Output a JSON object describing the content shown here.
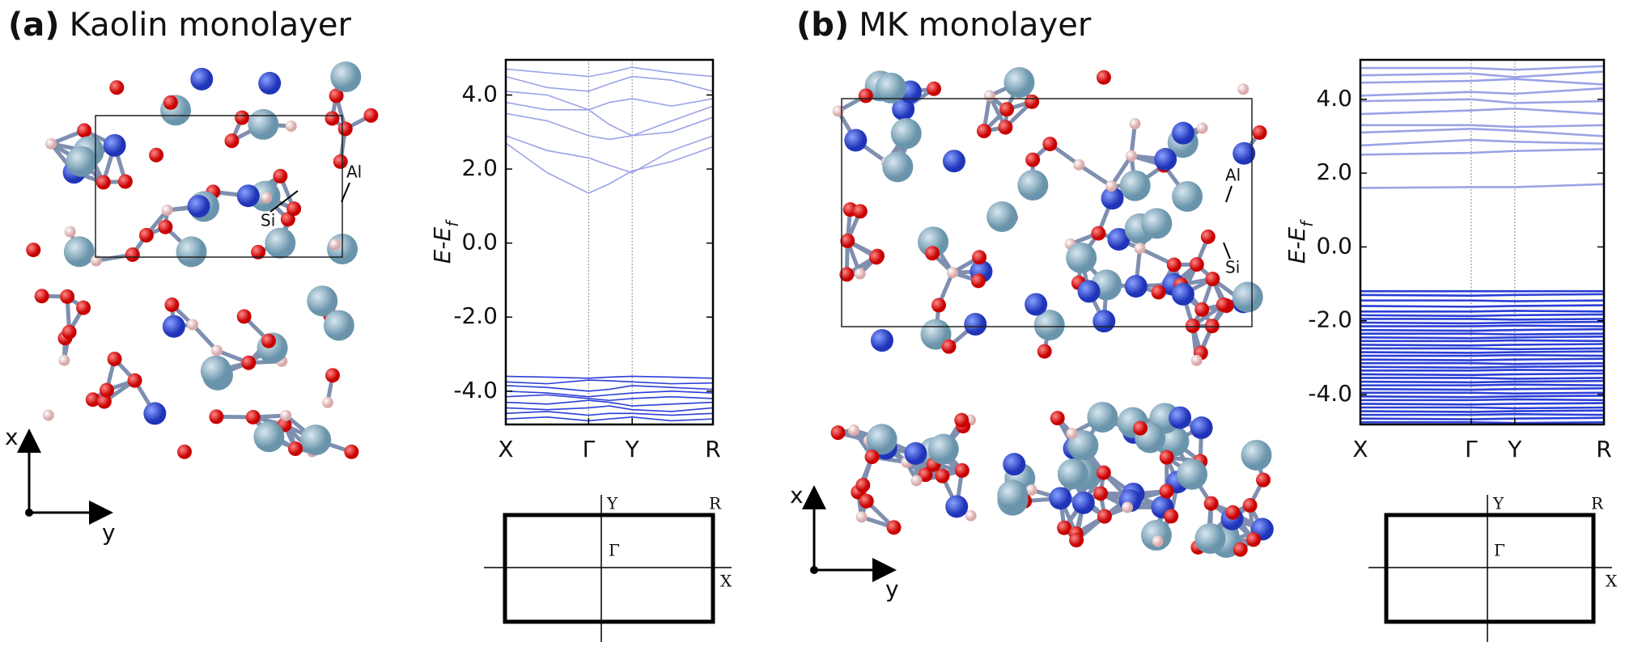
{
  "panels": [
    {
      "label": "(a)",
      "title": "Kaolin monolayer",
      "atom_labels": [
        "Al",
        "Si"
      ],
      "axis_labels": [
        "x",
        "y"
      ],
      "bz_labels": [
        "Y",
        "R",
        "Γ",
        "X"
      ]
    },
    {
      "label": "(b)",
      "title": "MK monolayer",
      "atom_labels": [
        "Al",
        "Si"
      ],
      "axis_labels": [
        "x",
        "y"
      ],
      "bz_labels": [
        "Y",
        "R",
        "Γ",
        "X"
      ]
    }
  ],
  "chart_data": [
    {
      "type": "line",
      "ylabel": {
        "main": "E-E",
        "sub": "f"
      },
      "grid": "x",
      "x": [
        0,
        0.2,
        0.4,
        0.5,
        0.61,
        0.8,
        1.0
      ],
      "xlim": [
        0,
        1
      ],
      "xticks": [
        {
          "value": 0,
          "label": "X"
        },
        {
          "value": 0.4,
          "label": "Γ"
        },
        {
          "value": 0.61,
          "label": "Y"
        },
        {
          "value": 1,
          "label": "R"
        }
      ],
      "ylim": [
        -4.9,
        4.95
      ],
      "yticks": [
        {
          "value": 4,
          "label": "4.0"
        },
        {
          "value": 2,
          "label": "2.0"
        },
        {
          "value": 0,
          "label": "0.0"
        },
        {
          "value": -2,
          "label": "-2.0"
        },
        {
          "value": -4,
          "label": "-4.0"
        }
      ],
      "series": [
        {
          "color": "#9aa3e6",
          "values": [
            2.7,
            1.9,
            1.35,
            1.6,
            1.95,
            2.2,
            2.6
          ]
        },
        {
          "color": "#9aa3e6",
          "values": [
            2.9,
            2.5,
            2.3,
            2.1,
            1.9,
            2.5,
            2.9
          ]
        },
        {
          "color": "#9aa3e6",
          "values": [
            3.5,
            3.3,
            2.9,
            2.8,
            2.9,
            3.0,
            3.4
          ]
        },
        {
          "color": "#9aa3e6",
          "values": [
            3.8,
            3.6,
            3.6,
            3.2,
            2.9,
            3.3,
            3.7
          ]
        },
        {
          "color": "#9aa3e6",
          "values": [
            4.1,
            4.0,
            3.6,
            3.8,
            3.9,
            3.7,
            3.9
          ]
        },
        {
          "color": "#9aa3e6",
          "values": [
            4.5,
            4.2,
            4.1,
            4.3,
            4.5,
            4.4,
            4.1
          ]
        },
        {
          "color": "#9aa3e6",
          "values": [
            4.7,
            4.6,
            4.5,
            4.6,
            4.75,
            4.6,
            4.5
          ]
        },
        {
          "color": "#2b3fd6",
          "values": [
            -3.6,
            -3.62,
            -3.65,
            -3.62,
            -3.6,
            -3.62,
            -3.65
          ]
        },
        {
          "color": "#2b3fd6",
          "values": [
            -3.75,
            -3.8,
            -3.7,
            -3.72,
            -3.75,
            -3.8,
            -3.78
          ]
        },
        {
          "color": "#2b3fd6",
          "values": [
            -3.85,
            -3.9,
            -4.0,
            -3.95,
            -3.85,
            -3.9,
            -3.95
          ]
        },
        {
          "color": "#2b3fd6",
          "values": [
            -4.0,
            -4.05,
            -4.15,
            -4.1,
            -4.05,
            -4.0,
            -4.05
          ]
        },
        {
          "color": "#2b3fd6",
          "values": [
            -4.15,
            -4.1,
            -4.2,
            -4.25,
            -4.2,
            -4.15,
            -4.2
          ]
        },
        {
          "color": "#2b3fd6",
          "values": [
            -4.3,
            -4.35,
            -4.25,
            -4.3,
            -4.4,
            -4.35,
            -4.3
          ]
        },
        {
          "color": "#2b3fd6",
          "values": [
            -4.45,
            -4.5,
            -4.45,
            -4.4,
            -4.5,
            -4.55,
            -4.45
          ]
        },
        {
          "color": "#2b3fd6",
          "values": [
            -4.6,
            -4.55,
            -4.65,
            -4.6,
            -4.6,
            -4.65,
            -4.6
          ]
        },
        {
          "color": "#2b3fd6",
          "values": [
            -4.75,
            -4.7,
            -4.8,
            -4.75,
            -4.7,
            -4.8,
            -4.75
          ]
        }
      ]
    },
    {
      "type": "line",
      "ylabel": {
        "main": "E-E",
        "sub": "f"
      },
      "grid": "x",
      "x": [
        0,
        0.455,
        0.634,
        1
      ],
      "xlim": [
        0,
        1
      ],
      "xticks": [
        {
          "value": 0,
          "label": "X"
        },
        {
          "value": 0.455,
          "label": "Γ"
        },
        {
          "value": 0.634,
          "label": "Y"
        },
        {
          "value": 1,
          "label": "R"
        }
      ],
      "ylim": [
        -4.81,
        5.07
      ],
      "yticks": [
        {
          "value": 4,
          "label": "4.0"
        },
        {
          "value": 2,
          "label": "2.0"
        },
        {
          "value": 0,
          "label": "0.0"
        },
        {
          "value": -2,
          "label": "-2.0"
        },
        {
          "value": -4,
          "label": "-4.0"
        }
      ],
      "series": [
        {
          "color": "#9aa3e6",
          "values": [
            1.6,
            1.62,
            1.62,
            1.7
          ]
        },
        {
          "color": "#9aa3e6",
          "values": [
            2.5,
            2.55,
            2.6,
            2.65
          ]
        },
        {
          "color": "#9aa3e6",
          "values": [
            2.75,
            2.9,
            2.85,
            2.8
          ]
        },
        {
          "color": "#9aa3e6",
          "values": [
            3.1,
            3.2,
            3.15,
            3.0
          ]
        },
        {
          "color": "#9aa3e6",
          "values": [
            3.3,
            3.3,
            3.25,
            3.3
          ]
        },
        {
          "color": "#9aa3e6",
          "values": [
            3.6,
            3.7,
            3.75,
            3.6
          ]
        },
        {
          "color": "#9aa3e6",
          "values": [
            3.95,
            4.0,
            3.9,
            3.95
          ]
        },
        {
          "color": "#9aa3e6",
          "values": [
            4.1,
            4.2,
            4.15,
            4.3
          ]
        },
        {
          "color": "#9aa3e6",
          "values": [
            4.45,
            4.5,
            4.55,
            4.4
          ]
        },
        {
          "color": "#9aa3e6",
          "values": [
            4.65,
            4.7,
            4.6,
            4.75
          ]
        },
        {
          "color": "#9aa3e6",
          "values": [
            4.85,
            4.85,
            4.8,
            4.9
          ]
        },
        {
          "color": "#2b3fd6",
          "values": [
            -1.2,
            -1.2,
            -1.2,
            -1.2
          ]
        },
        {
          "color": "#2b3fd6",
          "values": [
            -1.3,
            -1.32,
            -1.3,
            -1.28
          ]
        },
        {
          "color": "#2b3fd6",
          "values": [
            -1.45,
            -1.45,
            -1.47,
            -1.45
          ]
        },
        {
          "color": "#2b3fd6",
          "values": [
            -1.6,
            -1.62,
            -1.6,
            -1.58
          ]
        },
        {
          "color": "#2b3fd6",
          "values": [
            -1.75,
            -1.75,
            -1.73,
            -1.75
          ]
        },
        {
          "color": "#2b3fd6",
          "values": [
            -1.85,
            -1.87,
            -1.85,
            -1.83
          ]
        },
        {
          "color": "#2b3fd6",
          "values": [
            -1.95,
            -1.95,
            -1.97,
            -1.95
          ]
        },
        {
          "color": "#2b3fd6",
          "values": [
            -2.05,
            -2.07,
            -2.05,
            -2.03
          ]
        },
        {
          "color": "#2b3fd6",
          "values": [
            -2.15,
            -2.15,
            -2.13,
            -2.15
          ]
        },
        {
          "color": "#2b3fd6",
          "values": [
            -2.25,
            -2.27,
            -2.25,
            -2.23
          ]
        },
        {
          "color": "#2b3fd6",
          "values": [
            -2.35,
            -2.35,
            -2.37,
            -2.35
          ]
        },
        {
          "color": "#2b3fd6",
          "values": [
            -2.45,
            -2.47,
            -2.45,
            -2.43
          ]
        },
        {
          "color": "#2b3fd6",
          "values": [
            -2.55,
            -2.55,
            -2.53,
            -2.55
          ]
        },
        {
          "color": "#2b3fd6",
          "values": [
            -2.65,
            -2.67,
            -2.65,
            -2.63
          ]
        },
        {
          "color": "#2b3fd6",
          "values": [
            -2.75,
            -2.75,
            -2.77,
            -2.75
          ]
        },
        {
          "color": "#2b3fd6",
          "values": [
            -2.85,
            -2.87,
            -2.85,
            -2.83
          ]
        },
        {
          "color": "#2b3fd6",
          "values": [
            -2.95,
            -2.95,
            -2.93,
            -2.95
          ]
        },
        {
          "color": "#2b3fd6",
          "values": [
            -3.05,
            -3.07,
            -3.05,
            -3.03
          ]
        },
        {
          "color": "#2b3fd6",
          "values": [
            -3.15,
            -3.15,
            -3.17,
            -3.15
          ]
        },
        {
          "color": "#2b3fd6",
          "values": [
            -3.25,
            -3.27,
            -3.25,
            -3.23
          ]
        },
        {
          "color": "#2b3fd6",
          "values": [
            -3.35,
            -3.35,
            -3.33,
            -3.35
          ]
        },
        {
          "color": "#2b3fd6",
          "values": [
            -3.45,
            -3.47,
            -3.45,
            -3.43
          ]
        },
        {
          "color": "#2b3fd6",
          "values": [
            -3.55,
            -3.55,
            -3.57,
            -3.55
          ]
        },
        {
          "color": "#2b3fd6",
          "values": [
            -3.65,
            -3.67,
            -3.65,
            -3.63
          ]
        },
        {
          "color": "#2b3fd6",
          "values": [
            -3.75,
            -3.75,
            -3.73,
            -3.75
          ]
        },
        {
          "color": "#2b3fd6",
          "values": [
            -3.85,
            -3.87,
            -3.85,
            -3.83
          ]
        },
        {
          "color": "#2b3fd6",
          "values": [
            -3.95,
            -3.95,
            -3.97,
            -3.95
          ]
        },
        {
          "color": "#2b3fd6",
          "values": [
            -4.05,
            -4.07,
            -4.05,
            -4.03
          ]
        },
        {
          "color": "#2b3fd6",
          "values": [
            -4.15,
            -4.15,
            -4.13,
            -4.15
          ]
        },
        {
          "color": "#2b3fd6",
          "values": [
            -4.25,
            -4.27,
            -4.25,
            -4.23
          ]
        },
        {
          "color": "#2b3fd6",
          "values": [
            -4.35,
            -4.35,
            -4.37,
            -4.35
          ]
        },
        {
          "color": "#2b3fd6",
          "values": [
            -4.45,
            -4.47,
            -4.45,
            -4.43
          ]
        },
        {
          "color": "#2b3fd6",
          "values": [
            -4.55,
            -4.55,
            -4.53,
            -4.55
          ]
        },
        {
          "color": "#2b3fd6",
          "values": [
            -4.65,
            -4.67,
            -4.65,
            -4.63
          ]
        },
        {
          "color": "#2b3fd6",
          "values": [
            -4.75,
            -4.75,
            -4.77,
            -4.75
          ]
        }
      ]
    }
  ]
}
